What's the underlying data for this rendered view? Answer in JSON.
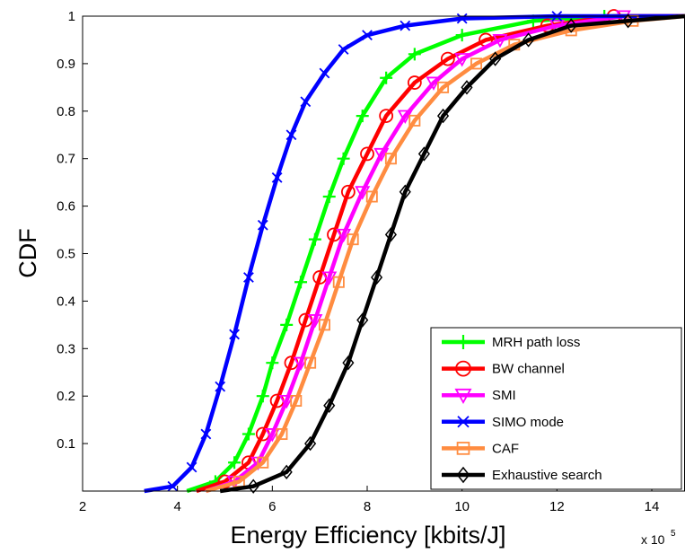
{
  "chart_data": {
    "type": "line",
    "xlabel": "Energy Efficiency [kbits/J]",
    "ylabel": "CDF",
    "x_multiplier_label": "x 10",
    "x_multiplier_exponent": "5",
    "xlim": [
      2,
      14.7
    ],
    "ylim": [
      0,
      1
    ],
    "xticks": [
      2,
      4,
      6,
      8,
      10,
      12,
      14
    ],
    "yticks": [
      0.1,
      0.2,
      0.3,
      0.4,
      0.5,
      0.6,
      0.7,
      0.8,
      0.9,
      1
    ],
    "grid": false,
    "legend_position": "bottom-right",
    "series": [
      {
        "name": "MRH path loss",
        "color": "#00ff00",
        "marker": "plus",
        "x": [
          4.2,
          4.8,
          5.2,
          5.5,
          5.8,
          6.0,
          6.3,
          6.6,
          6.9,
          7.2,
          7.5,
          7.9,
          8.4,
          9.0,
          10.0,
          11.5,
          13.0,
          14.7
        ],
        "y": [
          0.0,
          0.02,
          0.06,
          0.12,
          0.2,
          0.27,
          0.35,
          0.44,
          0.53,
          0.62,
          0.7,
          0.79,
          0.87,
          0.92,
          0.96,
          0.99,
          1.0,
          1.0
        ]
      },
      {
        "name": "BW channel",
        "color": "#ff0000",
        "marker": "circle",
        "x": [
          4.4,
          5.0,
          5.5,
          5.8,
          6.1,
          6.4,
          6.7,
          7.0,
          7.3,
          7.6,
          8.0,
          8.4,
          9.0,
          9.7,
          10.5,
          11.8,
          13.2,
          14.7
        ],
        "y": [
          0.0,
          0.02,
          0.06,
          0.12,
          0.19,
          0.27,
          0.36,
          0.45,
          0.54,
          0.63,
          0.71,
          0.79,
          0.86,
          0.91,
          0.95,
          0.98,
          1.0,
          1.0
        ]
      },
      {
        "name": "SMI",
        "color": "#ff00ff",
        "marker": "triangle-down",
        "x": [
          4.6,
          5.2,
          5.7,
          6.0,
          6.3,
          6.6,
          6.9,
          7.2,
          7.5,
          7.9,
          8.3,
          8.8,
          9.4,
          10.0,
          10.8,
          12.0,
          13.4,
          14.7
        ],
        "y": [
          0.0,
          0.02,
          0.06,
          0.12,
          0.19,
          0.27,
          0.36,
          0.45,
          0.54,
          0.63,
          0.71,
          0.79,
          0.86,
          0.91,
          0.95,
          0.98,
          1.0,
          1.0
        ]
      },
      {
        "name": "SIMO mode",
        "color": "#0000ff",
        "marker": "x",
        "x": [
          3.3,
          3.9,
          4.3,
          4.6,
          4.9,
          5.2,
          5.5,
          5.8,
          6.1,
          6.4,
          6.7,
          7.1,
          7.5,
          8.0,
          8.8,
          10.0,
          12.0,
          14.7
        ],
        "y": [
          0.0,
          0.01,
          0.05,
          0.12,
          0.22,
          0.33,
          0.45,
          0.56,
          0.66,
          0.75,
          0.82,
          0.88,
          0.93,
          0.96,
          0.98,
          0.995,
          1.0,
          1.0
        ]
      },
      {
        "name": "CAF",
        "color": "#ff8c40",
        "marker": "square",
        "x": [
          4.6,
          5.3,
          5.8,
          6.2,
          6.5,
          6.8,
          7.1,
          7.4,
          7.7,
          8.1,
          8.5,
          9.0,
          9.6,
          10.3,
          11.1,
          12.3,
          13.6,
          14.7
        ],
        "y": [
          0.0,
          0.02,
          0.06,
          0.12,
          0.19,
          0.27,
          0.35,
          0.44,
          0.53,
          0.62,
          0.7,
          0.78,
          0.85,
          0.9,
          0.94,
          0.97,
          0.99,
          1.0
        ]
      },
      {
        "name": "Exhaustive search",
        "color": "#000000",
        "marker": "diamond",
        "x": [
          4.9,
          5.6,
          6.3,
          6.8,
          7.2,
          7.6,
          7.9,
          8.2,
          8.5,
          8.8,
          9.2,
          9.6,
          10.1,
          10.7,
          11.4,
          12.3,
          13.5,
          14.7
        ],
        "y": [
          0.0,
          0.01,
          0.04,
          0.1,
          0.18,
          0.27,
          0.36,
          0.45,
          0.54,
          0.63,
          0.71,
          0.79,
          0.85,
          0.91,
          0.95,
          0.98,
          0.99,
          1.0
        ]
      }
    ]
  }
}
